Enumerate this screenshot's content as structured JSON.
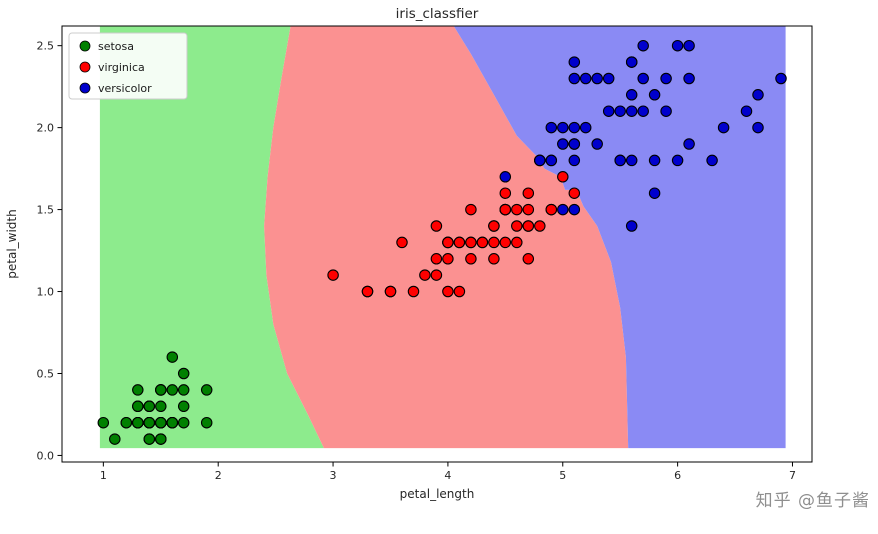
{
  "figure": {
    "background": "#ffffff",
    "watermark": "知乎 @鱼子酱"
  },
  "chart_data": {
    "type": "scatter",
    "title": "iris_classfier",
    "xlabel": "petal_length",
    "ylabel": "petal_width",
    "xlim": [
      0.64,
      7.17
    ],
    "ylim": [
      -0.04,
      2.62
    ],
    "grid": false,
    "legend_position": "upper left",
    "xticks": [
      {
        "v": 1,
        "label": "1"
      },
      {
        "v": 2,
        "label": "2"
      },
      {
        "v": 3,
        "label": "3"
      },
      {
        "v": 4,
        "label": "4"
      },
      {
        "v": 5,
        "label": "5"
      },
      {
        "v": 6,
        "label": "6"
      },
      {
        "v": 7,
        "label": "7"
      }
    ],
    "yticks": [
      {
        "v": 0.0,
        "label": "0.0"
      },
      {
        "v": 0.5,
        "label": "0.5"
      },
      {
        "v": 1.0,
        "label": "1.0"
      },
      {
        "v": 1.5,
        "label": "1.5"
      },
      {
        "v": 2.0,
        "label": "2.0"
      },
      {
        "v": 2.5,
        "label": "2.5"
      }
    ],
    "series": [
      {
        "name": "setosa",
        "color": "#008000",
        "edge_color": "#000000",
        "points": [
          [
            1.4,
            0.2
          ],
          [
            1.4,
            0.2
          ],
          [
            1.3,
            0.2
          ],
          [
            1.5,
            0.2
          ],
          [
            1.4,
            0.2
          ],
          [
            1.7,
            0.4
          ],
          [
            1.4,
            0.3
          ],
          [
            1.5,
            0.2
          ],
          [
            1.4,
            0.2
          ],
          [
            1.5,
            0.1
          ],
          [
            1.5,
            0.2
          ],
          [
            1.6,
            0.2
          ],
          [
            1.4,
            0.1
          ],
          [
            1.1,
            0.1
          ],
          [
            1.2,
            0.2
          ],
          [
            1.5,
            0.4
          ],
          [
            1.3,
            0.4
          ],
          [
            1.4,
            0.3
          ],
          [
            1.7,
            0.3
          ],
          [
            1.5,
            0.3
          ],
          [
            1.7,
            0.2
          ],
          [
            1.5,
            0.4
          ],
          [
            1.0,
            0.2
          ],
          [
            1.7,
            0.5
          ],
          [
            1.9,
            0.2
          ],
          [
            1.6,
            0.2
          ],
          [
            1.6,
            0.4
          ],
          [
            1.5,
            0.2
          ],
          [
            1.4,
            0.2
          ],
          [
            1.6,
            0.2
          ],
          [
            1.6,
            0.2
          ],
          [
            1.5,
            0.4
          ],
          [
            1.5,
            0.1
          ],
          [
            1.4,
            0.2
          ],
          [
            1.5,
            0.2
          ],
          [
            1.2,
            0.2
          ],
          [
            1.3,
            0.2
          ],
          [
            1.4,
            0.1
          ],
          [
            1.3,
            0.2
          ],
          [
            1.5,
            0.2
          ],
          [
            1.3,
            0.3
          ],
          [
            1.3,
            0.3
          ],
          [
            1.3,
            0.2
          ],
          [
            1.6,
            0.6
          ],
          [
            1.9,
            0.4
          ],
          [
            1.4,
            0.3
          ],
          [
            1.6,
            0.2
          ],
          [
            1.4,
            0.2
          ],
          [
            1.5,
            0.2
          ],
          [
            1.4,
            0.2
          ]
        ]
      },
      {
        "name": "virginica",
        "color": "#ff0000",
        "edge_color": "#000000",
        "points": [
          [
            4.7,
            1.4
          ],
          [
            4.5,
            1.5
          ],
          [
            4.9,
            1.5
          ],
          [
            4.0,
            1.3
          ],
          [
            4.6,
            1.5
          ],
          [
            4.5,
            1.3
          ],
          [
            4.7,
            1.6
          ],
          [
            3.3,
            1.0
          ],
          [
            4.6,
            1.3
          ],
          [
            3.9,
            1.4
          ],
          [
            3.5,
            1.0
          ],
          [
            4.2,
            1.5
          ],
          [
            4.0,
            1.0
          ],
          [
            4.7,
            1.4
          ],
          [
            3.6,
            1.3
          ],
          [
            4.4,
            1.4
          ],
          [
            4.5,
            1.5
          ],
          [
            4.1,
            1.0
          ],
          [
            4.5,
            1.5
          ],
          [
            3.9,
            1.1
          ],
          [
            4.8,
            1.8
          ],
          [
            4.0,
            1.3
          ],
          [
            4.9,
            1.5
          ],
          [
            4.7,
            1.2
          ],
          [
            4.3,
            1.3
          ],
          [
            4.4,
            1.4
          ],
          [
            4.8,
            1.4
          ],
          [
            5.0,
            1.7
          ],
          [
            4.5,
            1.5
          ],
          [
            3.5,
            1.0
          ],
          [
            3.8,
            1.1
          ],
          [
            3.7,
            1.0
          ],
          [
            3.9,
            1.2
          ],
          [
            5.1,
            1.6
          ],
          [
            4.5,
            1.5
          ],
          [
            4.5,
            1.6
          ],
          [
            4.7,
            1.5
          ],
          [
            4.4,
            1.3
          ],
          [
            4.1,
            1.3
          ],
          [
            4.0,
            1.3
          ],
          [
            4.4,
            1.2
          ],
          [
            4.6,
            1.4
          ],
          [
            4.0,
            1.2
          ],
          [
            3.3,
            1.0
          ],
          [
            4.2,
            1.3
          ],
          [
            4.2,
            1.2
          ],
          [
            4.2,
            1.3
          ],
          [
            4.3,
            1.3
          ],
          [
            3.0,
            1.1
          ],
          [
            4.1,
            1.3
          ]
        ]
      },
      {
        "name": "versicolor",
        "color": "#0000cd",
        "edge_color": "#000000",
        "points": [
          [
            6.0,
            2.5
          ],
          [
            5.1,
            1.9
          ],
          [
            5.9,
            2.1
          ],
          [
            5.6,
            1.8
          ],
          [
            5.8,
            2.2
          ],
          [
            6.6,
            2.1
          ],
          [
            4.5,
            1.7
          ],
          [
            6.3,
            1.8
          ],
          [
            5.8,
            1.8
          ],
          [
            6.1,
            2.5
          ],
          [
            5.1,
            2.0
          ],
          [
            5.3,
            1.9
          ],
          [
            5.5,
            2.1
          ],
          [
            5.0,
            2.0
          ],
          [
            5.1,
            2.4
          ],
          [
            5.3,
            2.3
          ],
          [
            5.5,
            1.8
          ],
          [
            6.7,
            2.2
          ],
          [
            6.9,
            2.3
          ],
          [
            5.0,
            1.5
          ],
          [
            5.7,
            2.3
          ],
          [
            4.9,
            2.0
          ],
          [
            6.7,
            2.0
          ],
          [
            4.9,
            1.8
          ],
          [
            5.7,
            2.1
          ],
          [
            6.0,
            1.8
          ],
          [
            4.8,
            1.8
          ],
          [
            4.9,
            1.8
          ],
          [
            5.6,
            2.1
          ],
          [
            5.8,
            1.6
          ],
          [
            6.1,
            1.9
          ],
          [
            6.4,
            2.0
          ],
          [
            5.6,
            2.2
          ],
          [
            5.1,
            1.5
          ],
          [
            5.6,
            1.4
          ],
          [
            6.1,
            2.3
          ],
          [
            5.6,
            2.4
          ],
          [
            5.5,
            1.8
          ],
          [
            4.8,
            1.8
          ],
          [
            5.4,
            2.1
          ],
          [
            5.6,
            2.4
          ],
          [
            5.1,
            2.3
          ],
          [
            5.1,
            1.9
          ],
          [
            5.9,
            2.3
          ],
          [
            5.7,
            2.5
          ],
          [
            5.2,
            2.3
          ],
          [
            5.0,
            1.9
          ],
          [
            5.2,
            2.0
          ],
          [
            5.4,
            2.3
          ],
          [
            5.1,
            1.8
          ]
        ]
      }
    ],
    "regions": [
      {
        "name": "setosa",
        "color": "#8deb8d",
        "points": [
          [
            0.97,
            0.045
          ],
          [
            0.97,
            2.62
          ],
          [
            2.63,
            2.62
          ],
          [
            2.55,
            2.3
          ],
          [
            2.48,
            2.0
          ],
          [
            2.43,
            1.7
          ],
          [
            2.4,
            1.4
          ],
          [
            2.42,
            1.1
          ],
          [
            2.48,
            0.8
          ],
          [
            2.6,
            0.5
          ],
          [
            2.78,
            0.25
          ],
          [
            2.92,
            0.045
          ]
        ]
      },
      {
        "name": "virginica",
        "color": "#fb9191",
        "points": [
          [
            2.92,
            0.045
          ],
          [
            2.78,
            0.25
          ],
          [
            2.6,
            0.5
          ],
          [
            2.48,
            0.8
          ],
          [
            2.42,
            1.1
          ],
          [
            2.4,
            1.4
          ],
          [
            2.43,
            1.7
          ],
          [
            2.48,
            2.0
          ],
          [
            2.55,
            2.3
          ],
          [
            2.63,
            2.62
          ],
          [
            4.05,
            2.62
          ],
          [
            4.2,
            2.45
          ],
          [
            4.4,
            2.2
          ],
          [
            4.6,
            1.95
          ],
          [
            4.78,
            1.82
          ],
          [
            4.84,
            1.75
          ],
          [
            4.98,
            1.7
          ],
          [
            5.02,
            1.62
          ],
          [
            5.12,
            1.62
          ],
          [
            5.18,
            1.52
          ],
          [
            5.3,
            1.4
          ],
          [
            5.42,
            1.18
          ],
          [
            5.5,
            0.9
          ],
          [
            5.55,
            0.6
          ],
          [
            5.57,
            0.045
          ]
        ]
      },
      {
        "name": "versicolor",
        "color": "#8a8af4",
        "points": [
          [
            5.57,
            0.045
          ],
          [
            5.55,
            0.6
          ],
          [
            5.5,
            0.9
          ],
          [
            5.42,
            1.18
          ],
          [
            5.3,
            1.4
          ],
          [
            5.18,
            1.52
          ],
          [
            5.12,
            1.62
          ],
          [
            5.02,
            1.62
          ],
          [
            4.98,
            1.7
          ],
          [
            4.84,
            1.75
          ],
          [
            4.78,
            1.82
          ],
          [
            4.6,
            1.95
          ],
          [
            4.4,
            2.2
          ],
          [
            4.2,
            2.45
          ],
          [
            4.05,
            2.62
          ],
          [
            6.94,
            2.62
          ],
          [
            6.94,
            0.045
          ]
        ]
      }
    ]
  }
}
